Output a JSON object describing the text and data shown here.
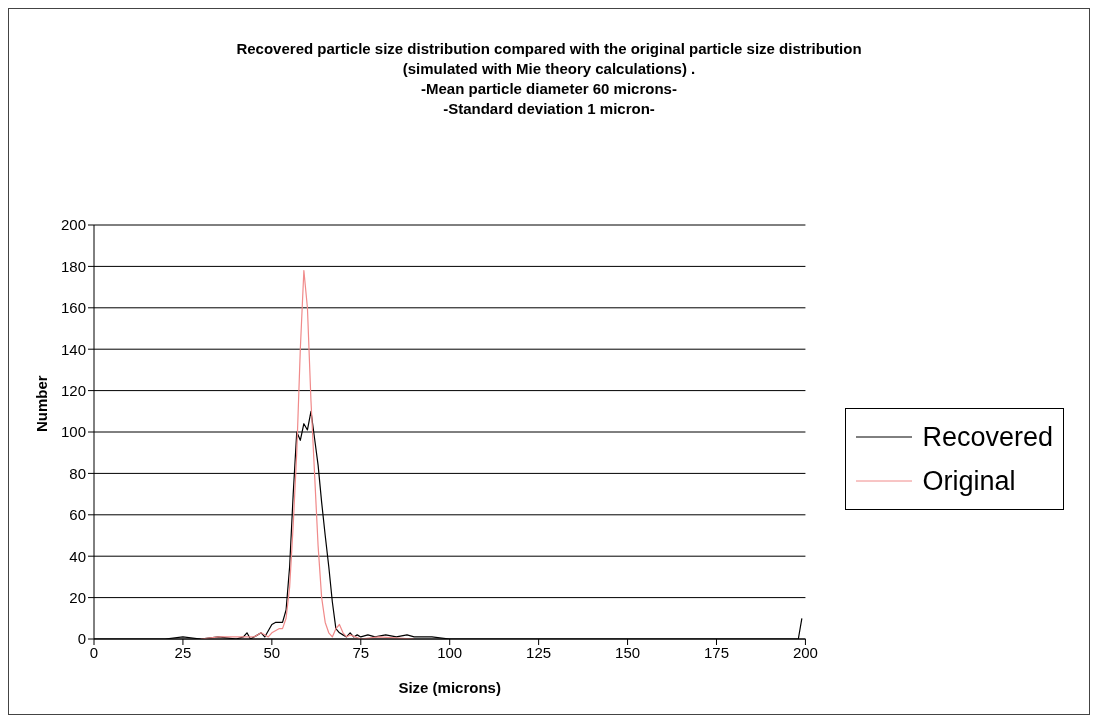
{
  "chart_data": {
    "type": "line",
    "title": "Recovered particle size distribution compared with the original particle size distribution\n(simulated with Mie theory calculations) .\n-Mean particle diameter 60 microns-\n-Standard deviation 1 micron-",
    "xlabel": "Size (microns)",
    "ylabel": "Number",
    "xlim": [
      0,
      200
    ],
    "xticks": [
      0,
      25,
      50,
      75,
      100,
      125,
      150,
      175,
      200
    ],
    "ylim": [
      0,
      200
    ],
    "yticks": [
      0,
      20,
      40,
      60,
      80,
      100,
      120,
      140,
      160,
      180,
      200
    ],
    "grid": "y",
    "legend": "right",
    "marker": "none",
    "line_style": "solid",
    "series": [
      {
        "name": "Recovered",
        "color": "#000000",
        "x": [
          0,
          20,
          25,
          30,
          35,
          40,
          42,
          43,
          44,
          46,
          47,
          48,
          50,
          51,
          53,
          54,
          55,
          56,
          57,
          58,
          59,
          60,
          61,
          62,
          63,
          64,
          65,
          66,
          67,
          68,
          69,
          70,
          71,
          72,
          73,
          74,
          75,
          77,
          79,
          82,
          85,
          88,
          90,
          95,
          100,
          150,
          198,
          199
        ],
        "values": [
          0,
          0,
          1,
          0,
          1,
          0,
          1,
          3,
          0,
          2,
          3,
          1,
          7,
          8,
          8,
          14,
          35,
          70,
          100,
          96,
          104,
          101,
          110,
          97,
          84,
          66,
          50,
          35,
          18,
          5,
          3,
          2,
          1,
          3,
          1,
          2,
          1,
          2,
          1,
          2,
          1,
          2,
          1,
          1,
          0,
          0,
          0,
          10
        ]
      },
      {
        "name": "Original",
        "color": "#f08a8a",
        "x": [
          30,
          35,
          45,
          47,
          49,
          50,
          52,
          53,
          54,
          55,
          56,
          57,
          58,
          59,
          60,
          61,
          62,
          63,
          64,
          65,
          66,
          67,
          68,
          69,
          70,
          71,
          72,
          75,
          80,
          90
        ],
        "values": [
          0,
          1,
          1,
          3,
          1,
          3,
          5,
          5,
          10,
          25,
          55,
          90,
          140,
          178,
          160,
          115,
          80,
          45,
          20,
          8,
          3,
          1,
          5,
          7,
          3,
          1,
          2,
          0,
          1,
          0
        ]
      }
    ]
  }
}
